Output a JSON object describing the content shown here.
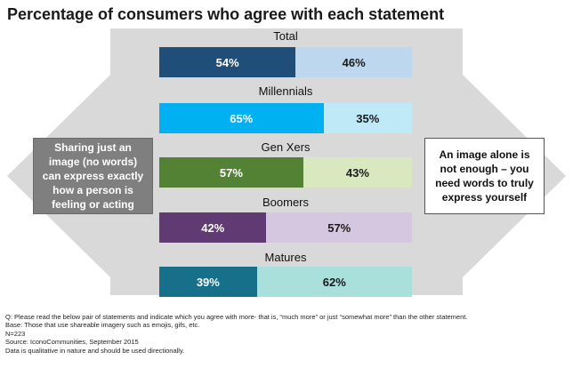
{
  "title": "Percentage of consumers who agree with each statement",
  "left_statement": "Sharing just an image (no words) can express exactly how a person is feeling or acting",
  "right_statement": "An image alone is not enough – you need words to truly express yourself",
  "chart_data": {
    "type": "bar",
    "orientation": "horizontal-stacked-100",
    "categories": [
      "Total",
      "Millennials",
      "Gen Xers",
      "Boomers",
      "Matures"
    ],
    "series": [
      {
        "values": [
          54,
          65,
          57,
          42,
          39
        ]
      },
      {
        "values": [
          46,
          35,
          43,
          57,
          62
        ]
      }
    ],
    "value_labels": [
      [
        "54%",
        "46%"
      ],
      [
        "65%",
        "35%"
      ],
      [
        "57%",
        "43%"
      ],
      [
        "42%",
        "57%"
      ],
      [
        "39%",
        "62%"
      ]
    ],
    "colors": [
      [
        "#1f4e79",
        "#bdd7ee"
      ],
      [
        "#00b0f0",
        "#bfe9f7"
      ],
      [
        "#548235",
        "#d9e8bf"
      ],
      [
        "#5f3a73",
        "#d6c7e0"
      ],
      [
        "#17708a",
        "#a9e0dc"
      ]
    ],
    "label_colors": [
      [
        "#ffffff",
        "#1a1a1a"
      ],
      [
        "#ffffff",
        "#1a1a1a"
      ],
      [
        "#ffffff",
        "#1a1a1a"
      ],
      [
        "#ffffff",
        "#1a1a1a"
      ],
      [
        "#ffffff",
        "#1a1a1a"
      ]
    ]
  },
  "footnotes": {
    "q": "Q: Please read the below pair of statements and indicate which you agree with more- that is, “much more” or just “somewhat more” than the other statement.",
    "base": "Base: Those that use shareable imagery such as emojis, gifs, etc.",
    "n": "N=223",
    "source": "Source: IconoCommunities, September 2015",
    "note": "Data is qualitative in nature and should be used directionally."
  }
}
